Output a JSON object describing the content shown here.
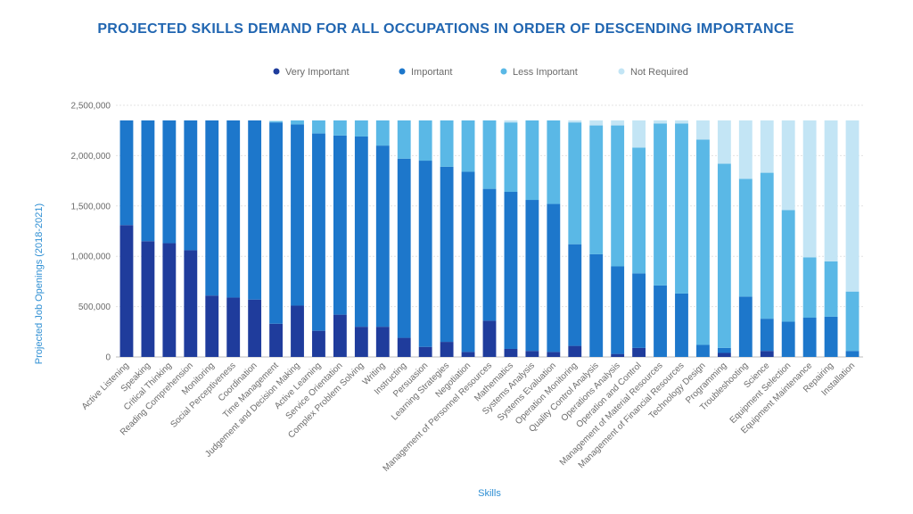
{
  "chart_data": {
    "type": "bar",
    "stacked": true,
    "title": "PROJECTED SKILLS DEMAND FOR ALL OCCUPATIONS IN ORDER OF DESCENDING IMPORTANCE",
    "xlabel": "Skills",
    "ylabel": "Projected Job Openings (2018-2021)",
    "ylim": [
      0,
      2500000
    ],
    "yticks": [
      0,
      500000,
      1000000,
      1500000,
      2000000,
      2500000
    ],
    "ytick_labels": [
      "0",
      "500,000",
      "1,000,000",
      "1,500,000",
      "2,000,000",
      "2,500,000"
    ],
    "grid": true,
    "legend_position": "top-center",
    "categories": [
      "Active Listening",
      "Speaking",
      "Critical Thinking",
      "Reading Comprehension",
      "Monitoring",
      "Social Perceptiveness",
      "Coordination",
      "Time Management",
      "Judgement and Decision Making",
      "Active Learning",
      "Service Orientation",
      "Complex Problem Solving",
      "Writing",
      "Instructing",
      "Persuasion",
      "Learning Strategies",
      "Negotiation",
      "Management of Personnel Resources",
      "Mathematics",
      "Systems Analysis",
      "Systems Evaluation",
      "Operation Monitoring",
      "Quality Control Analysis",
      "Operations Analysis",
      "Operation and Control",
      "Management of Material Resources",
      "Management of Financial Resources",
      "Technology Design",
      "Programming",
      "Troubleshooting",
      "Science",
      "Equipment Selection",
      "Equipment Maintenance",
      "Repairing",
      "Installation"
    ],
    "series": [
      {
        "name": "Very Important",
        "color": "#1f3c9c",
        "values": [
          1310000,
          1150000,
          1130000,
          1060000,
          610000,
          590000,
          570000,
          330000,
          510000,
          260000,
          420000,
          300000,
          300000,
          190000,
          100000,
          150000,
          50000,
          360000,
          80000,
          60000,
          50000,
          110000,
          0,
          30000,
          90000,
          0,
          0,
          0,
          40000,
          0,
          60000,
          0,
          0,
          0,
          0
        ]
      },
      {
        "name": "Important",
        "color": "#1d77cb",
        "values": [
          1040000,
          1200000,
          1220000,
          1290000,
          1740000,
          1760000,
          1780000,
          2000000,
          1800000,
          1960000,
          1780000,
          1890000,
          1800000,
          1780000,
          1850000,
          1740000,
          1790000,
          1310000,
          1560000,
          1500000,
          1470000,
          1010000,
          1020000,
          870000,
          740000,
          710000,
          630000,
          120000,
          50000,
          600000,
          320000,
          350000,
          390000,
          400000,
          60000
        ]
      },
      {
        "name": "Less Important",
        "color": "#5ab8e6",
        "values": [
          0,
          0,
          0,
          0,
          0,
          0,
          0,
          10000,
          40000,
          130000,
          150000,
          160000,
          250000,
          380000,
          400000,
          460000,
          510000,
          680000,
          690000,
          790000,
          830000,
          1210000,
          1280000,
          1400000,
          1250000,
          1610000,
          1690000,
          2040000,
          1830000,
          1170000,
          1450000,
          1110000,
          600000,
          550000,
          590000
        ]
      },
      {
        "name": "Not Required",
        "color": "#c3e5f5",
        "values": [
          0,
          0,
          0,
          0,
          0,
          0,
          0,
          10000,
          0,
          0,
          0,
          0,
          0,
          0,
          0,
          0,
          0,
          0,
          20000,
          0,
          0,
          20000,
          50000,
          50000,
          270000,
          30000,
          30000,
          190000,
          430000,
          580000,
          520000,
          890000,
          1360000,
          1400000,
          1700000
        ]
      }
    ]
  }
}
